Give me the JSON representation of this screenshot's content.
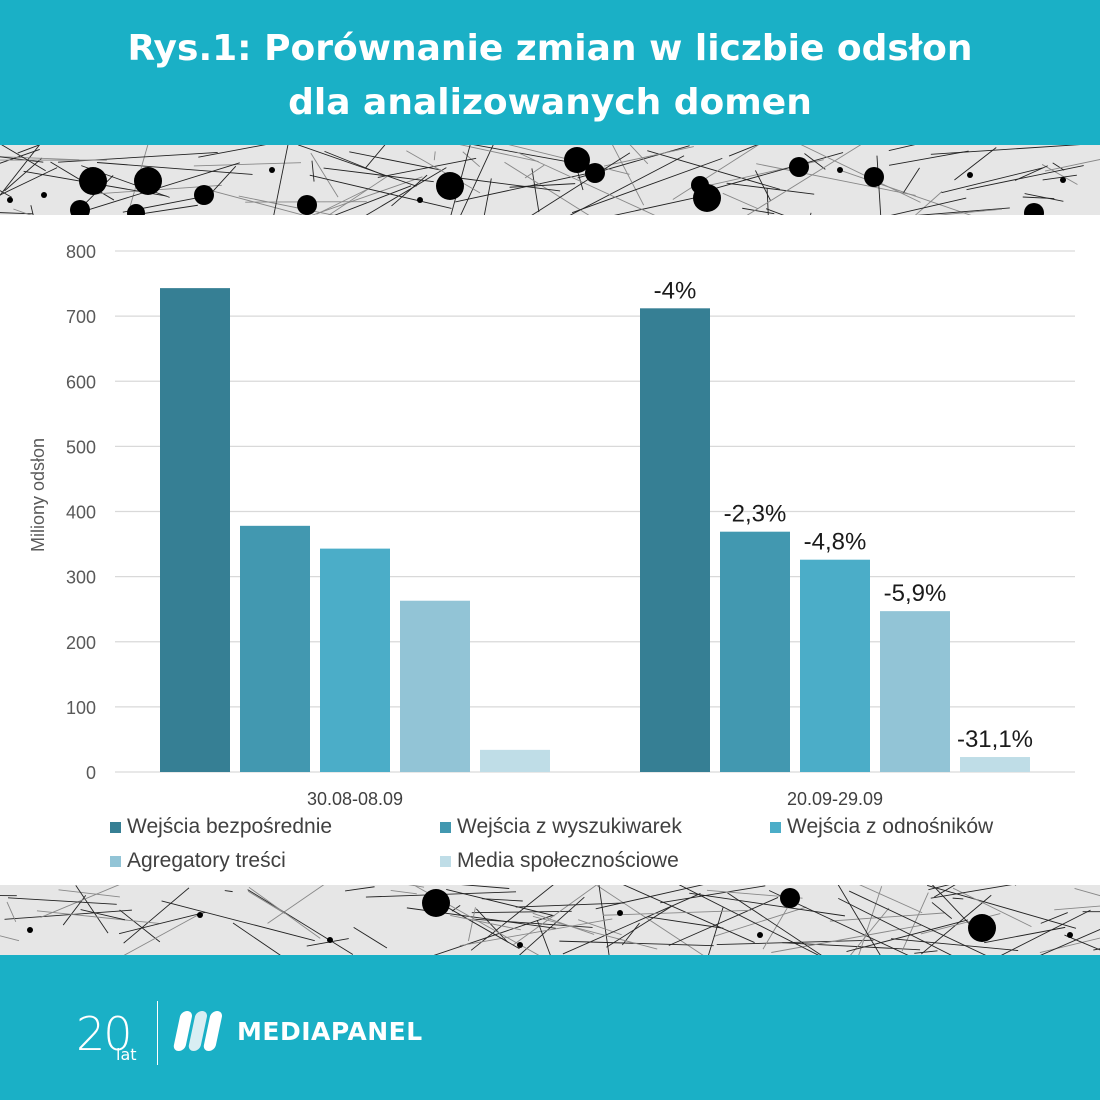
{
  "header": {
    "title_line1": "Rys.1: Porównanie zmian w liczbie odsłon",
    "title_line2": "dla analizowanych domen"
  },
  "footer": {
    "anniversary_number": "20",
    "anniversary_word": "lat",
    "brand_name": "MEDIAPANEL"
  },
  "chart_data": {
    "type": "bar",
    "categories": [
      "30.08-08.09",
      "20.09-29.09"
    ],
    "series": [
      {
        "name": "Wejścia bezpośrednie",
        "values": [
          743,
          712
        ],
        "color": "#367f94",
        "change_label": "-4%"
      },
      {
        "name": "Wejścia z wyszukiwarek",
        "values": [
          378,
          369
        ],
        "color": "#4298b0",
        "change_label": "-2,3%"
      },
      {
        "name": "Wejścia z odnośników",
        "values": [
          343,
          326
        ],
        "color": "#4badc8",
        "change_label": "-4,8%"
      },
      {
        "name": "Agregatory treści",
        "values": [
          263,
          247
        ],
        "color": "#92c4d6",
        "change_label": "-5,9%"
      },
      {
        "name": "Media społecznościowe",
        "values": [
          34,
          23
        ],
        "color": "#bfdde7",
        "change_label": "-31,1%"
      }
    ],
    "ylabel": "Miliony odsłon",
    "ylim": [
      0,
      800
    ],
    "yticks": [
      0,
      100,
      200,
      300,
      400,
      500,
      600,
      700,
      800
    ],
    "grid": true,
    "legend_position": "bottom"
  }
}
